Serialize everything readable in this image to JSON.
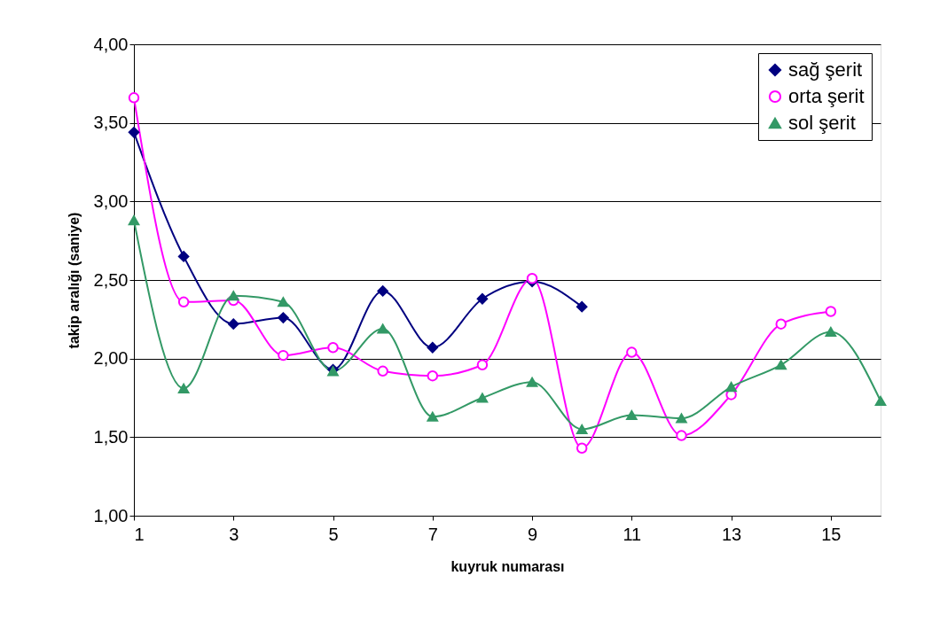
{
  "chart_data": {
    "type": "line",
    "xlabel": "kuyruk numarası",
    "ylabel": "takip aralığı (saniye)",
    "x": [
      1,
      2,
      3,
      4,
      5,
      6,
      7,
      8,
      9,
      10,
      11,
      12,
      13,
      14,
      15,
      16
    ],
    "series": [
      {
        "name": "sağ şerit",
        "color": "#000080",
        "marker": "diamond",
        "values": [
          3.44,
          2.65,
          2.22,
          2.26,
          1.93,
          2.43,
          2.07,
          2.38,
          2.49,
          2.33,
          null,
          null,
          null,
          null,
          null,
          null
        ]
      },
      {
        "name": "orta şerit",
        "color": "#ff00ff",
        "marker": "circle",
        "values": [
          3.66,
          2.36,
          2.37,
          2.02,
          2.07,
          1.92,
          1.89,
          1.96,
          2.51,
          1.43,
          2.04,
          1.51,
          1.77,
          2.22,
          2.3,
          null
        ]
      },
      {
        "name": "sol şerit",
        "color": "#339966",
        "marker": "triangle",
        "values": [
          2.88,
          1.81,
          2.4,
          2.36,
          1.92,
          2.19,
          1.63,
          1.75,
          1.85,
          1.55,
          1.64,
          1.62,
          1.82,
          1.96,
          2.17,
          1.73
        ]
      }
    ],
    "xlim": [
      1,
      16
    ],
    "xticks": [
      1,
      3,
      5,
      7,
      9,
      11,
      13,
      15
    ],
    "ylim": [
      1,
      4
    ],
    "yticks": [
      {
        "value": 1,
        "label": "1,00"
      },
      {
        "value": 1.5,
        "label": "1,50"
      },
      {
        "value": 2,
        "label": "2,00"
      },
      {
        "value": 2.5,
        "label": "2,50"
      },
      {
        "value": 3,
        "label": "3,00"
      },
      {
        "value": 3.5,
        "label": "3,50"
      },
      {
        "value": 4,
        "label": "4,00"
      }
    ],
    "grid": "y",
    "legend": "top right",
    "line_style": "solid"
  }
}
